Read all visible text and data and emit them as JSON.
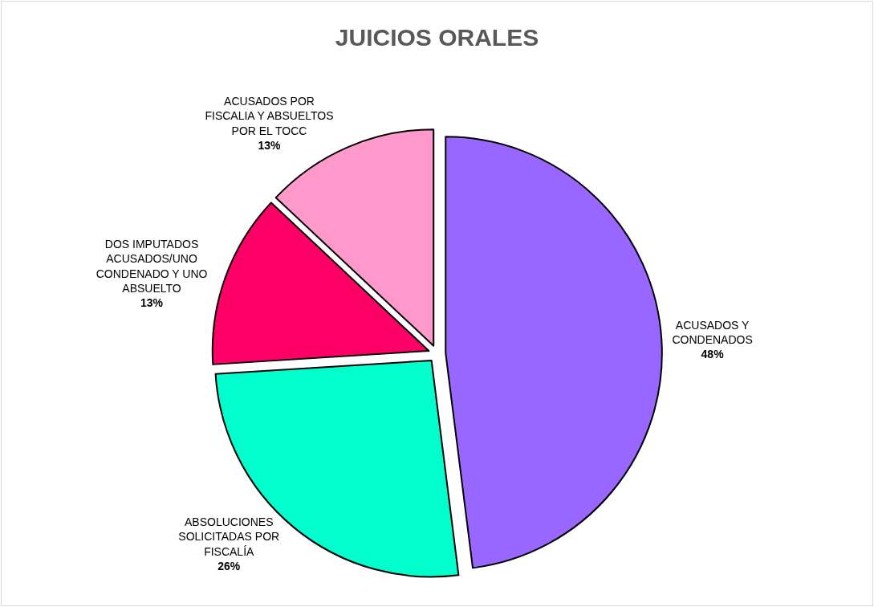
{
  "chart_data": {
    "type": "pie",
    "title": "JUICIOS ORALES",
    "categories": [
      "ACUSADOS Y\nCONDENADOS",
      "ABSOLUCIONES\nSOLICITADAS POR\nFISCALÍA",
      "DOS IMPUTADOS\nACUSADOS/UNO\nCONDENADO Y UNO\nABSUELTO",
      "ACUSADOS POR\nFISCALIA Y ABSUELTOS\nPOR EL TOCC"
    ],
    "values": [
      48,
      26,
      13,
      13
    ],
    "value_labels": [
      "48%",
      "26%",
      "13%",
      "13%"
    ],
    "colors": [
      "#9966ff",
      "#00ffcc",
      "#ff0066",
      "#ff99cc"
    ],
    "legend": false
  }
}
